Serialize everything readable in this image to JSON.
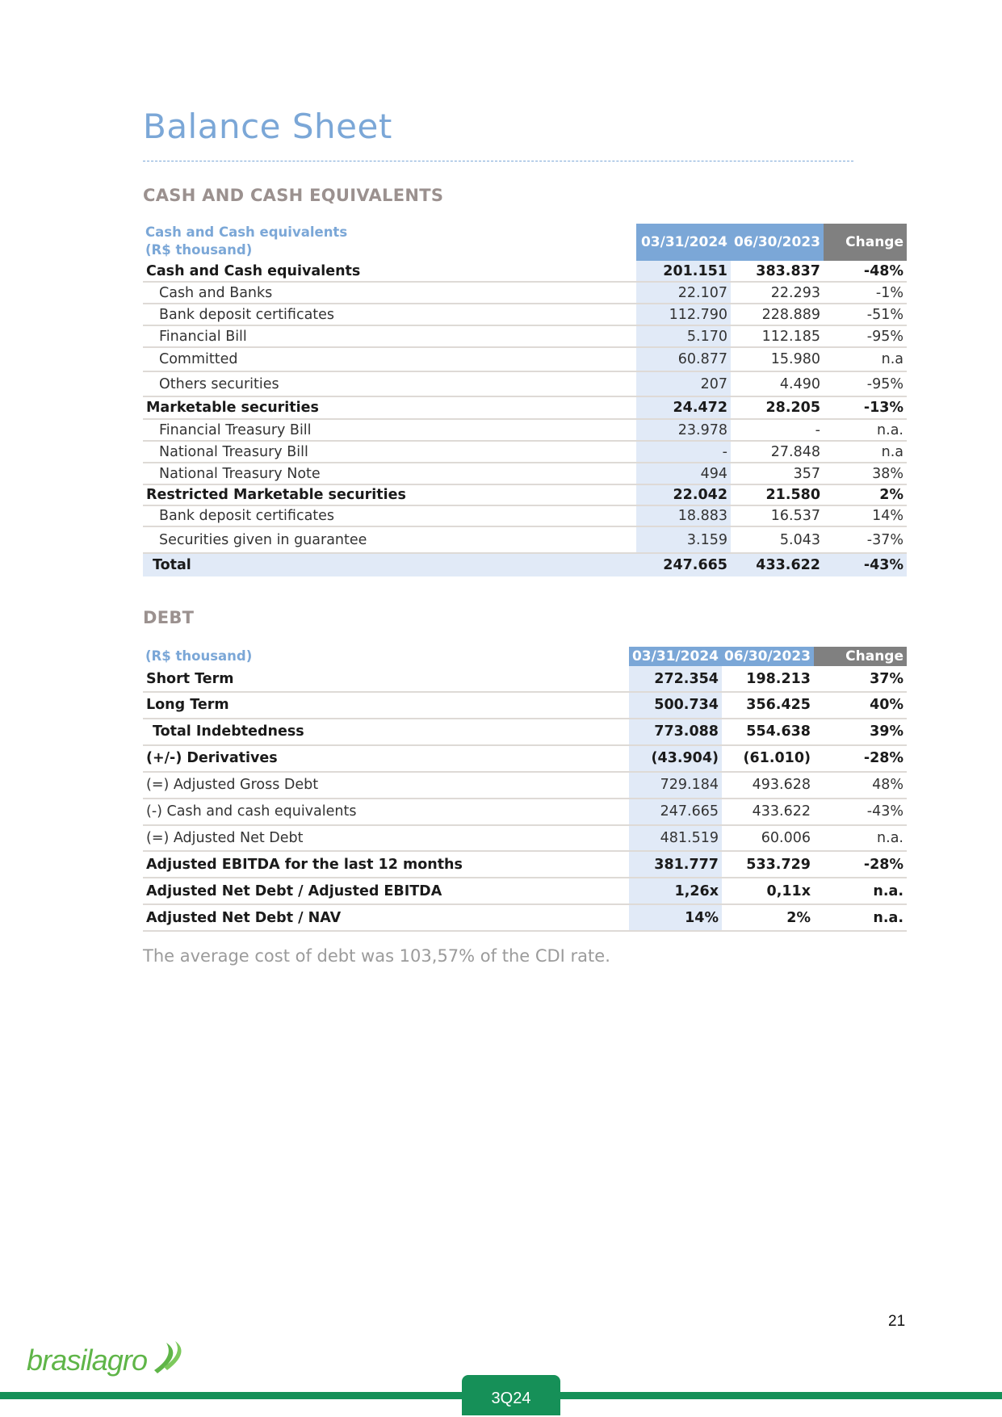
{
  "page_title": "Balance Sheet",
  "cash": {
    "section_title": "CASH AND CASH EQUIVALENTS",
    "header": {
      "label_line1": "Cash and Cash equivalents",
      "label_line2": "(R$ thousand)",
      "col1": "03/31/2024",
      "col2": "06/30/2023",
      "change": "Change"
    },
    "rows": [
      {
        "label": "Cash and Cash equivalents",
        "v1": "201.151",
        "v2": "383.837",
        "chg": "-48%",
        "bold": true,
        "indent": false
      },
      {
        "label": "Cash and Banks",
        "v1": "22.107",
        "v2": "22.293",
        "chg": "-1%",
        "bold": false,
        "indent": true
      },
      {
        "label": "Bank deposit certificates",
        "v1": "112.790",
        "v2": "228.889",
        "chg": "-51%",
        "bold": false,
        "indent": true
      },
      {
        "label": "Financial Bill",
        "v1": "5.170",
        "v2": "112.185",
        "chg": "-95%",
        "bold": false,
        "indent": true
      },
      {
        "label": "Committed",
        "v1": "60.877",
        "v2": "15.980",
        "chg": "n.a",
        "bold": false,
        "indent": true
      },
      {
        "label": "Others securities",
        "v1": "207",
        "v2": "4.490",
        "chg": "-95%",
        "bold": false,
        "indent": true
      },
      {
        "label": "Marketable securities",
        "v1": "24.472",
        "v2": "28.205",
        "chg": "-13%",
        "bold": true,
        "indent": false
      },
      {
        "label": "Financial Treasury Bill",
        "v1": "23.978",
        "v2": "-",
        "chg": "n.a.",
        "bold": false,
        "indent": true
      },
      {
        "label": "National Treasury Bill",
        "v1": "-",
        "v2": "27.848",
        "chg": "n.a",
        "bold": false,
        "indent": true
      },
      {
        "label": "National Treasury Note",
        "v1": "494",
        "v2": "357",
        "chg": "38%",
        "bold": false,
        "indent": true
      },
      {
        "label": "Restricted Marketable securities",
        "v1": "22.042",
        "v2": "21.580",
        "chg": "2%",
        "bold": true,
        "indent": false
      },
      {
        "label": "Bank deposit certificates",
        "v1": "18.883",
        "v2": "16.537",
        "chg": "14%",
        "bold": false,
        "indent": true
      },
      {
        "label": "Securities given in guarantee",
        "v1": "3.159",
        "v2": "5.043",
        "chg": "-37%",
        "bold": false,
        "indent": true
      },
      {
        "label": "Total",
        "v1": "247.665",
        "v2": "433.622",
        "chg": "-43%",
        "bold": true,
        "indent": false,
        "total": true
      }
    ]
  },
  "debt": {
    "section_title": "DEBT",
    "header": {
      "label": "(R$ thousand)",
      "col1": "03/31/2024",
      "col2": "06/30/2023",
      "change": "Change"
    },
    "rows": [
      {
        "label": "Short Term",
        "v1": "272.354",
        "v2": "198.213",
        "chg": "37%",
        "bold": true
      },
      {
        "label": "Long Term",
        "v1": "500.734",
        "v2": "356.425",
        "chg": "40%",
        "bold": true
      },
      {
        "label": "Total Indebtedness",
        "v1": "773.088",
        "v2": "554.638",
        "chg": "39%",
        "bold": true,
        "indent": true
      },
      {
        "label": "(+/-) Derivatives",
        "v1": "(43.904)",
        "v2": "(61.010)",
        "chg": "-28%",
        "bold": true
      },
      {
        "label": "(=) Adjusted Gross Debt",
        "v1": "729.184",
        "v2": "493.628",
        "chg": "48%",
        "bold": false
      },
      {
        "label": "(-) Cash and cash equivalents",
        "v1": "247.665",
        "v2": "433.622",
        "chg": "-43%",
        "bold": false
      },
      {
        "label": "(=) Adjusted Net Debt",
        "v1": "481.519",
        "v2": "60.006",
        "chg": "n.a.",
        "bold": false
      },
      {
        "label": "Adjusted EBITDA for the last 12 months",
        "v1": "381.777",
        "v2": "533.729",
        "chg": "-28%",
        "bold": true
      },
      {
        "label": "Adjusted Net Debt / Adjusted EBITDA",
        "v1": "1,26x",
        "v2": "0,11x",
        "chg": "n.a.",
        "bold": true
      },
      {
        "label": "Adjusted Net Debt / NAV",
        "v1": "14%",
        "v2": "2%",
        "chg": "n.a.",
        "bold": true
      }
    ],
    "note": "The average cost of debt was 103,57% of the CDI rate."
  },
  "footer": {
    "page_number": "21",
    "logo_text": "brasilagro",
    "quarter": "3Q24"
  },
  "colors": {
    "accent_blue": "#7ba7d7",
    "change_gray": "#808080",
    "column_tint": "#e1eaf7",
    "brand_green": "#169058",
    "logo_green": "#5fb548"
  }
}
